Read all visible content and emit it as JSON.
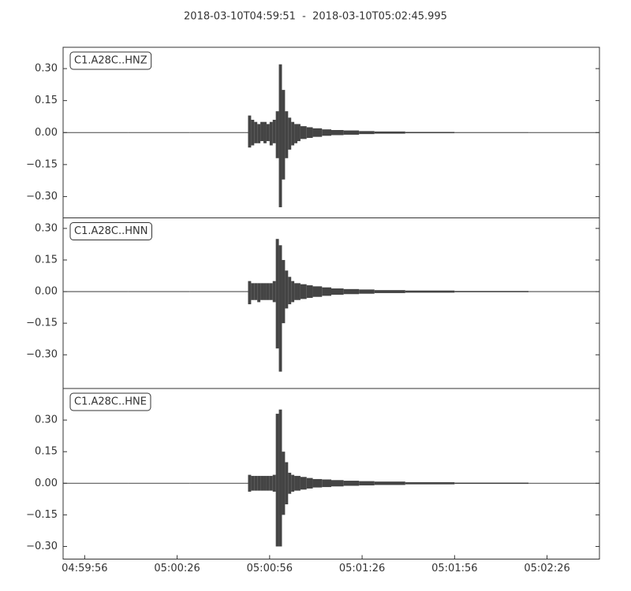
{
  "title": "2018-03-10T04:59:51  -  2018-03-10T05:02:45.995",
  "chart_data": [
    {
      "type": "envelope",
      "label": "C1.A28C..HNZ",
      "x": [
        "04:59:49",
        "05:00:10",
        "05:00:30",
        "05:00:48",
        "05:00:49",
        "05:00:50",
        "05:00:51",
        "05:00:52",
        "05:00:53",
        "05:00:54",
        "05:00:55",
        "05:00:56",
        "05:00:57",
        "05:00:58",
        "05:00:59",
        "05:01:00",
        "05:01:01",
        "05:01:02",
        "05:01:03",
        "05:01:04",
        "05:01:05",
        "05:01:06",
        "05:01:08",
        "05:01:10",
        "05:01:13",
        "05:01:16",
        "05:01:20",
        "05:01:25",
        "05:01:30",
        "05:01:40",
        "05:01:56",
        "05:02:20"
      ],
      "series": [
        {
          "color": "#444444",
          "values": [
            0.001,
            0.001,
            0.001,
            0.001,
            0.08,
            0.06,
            0.05,
            0.04,
            0.05,
            0.05,
            0.04,
            0.05,
            0.06,
            0.1,
            0.32,
            0.2,
            0.1,
            0.07,
            0.05,
            0.04,
            0.04,
            0.03,
            0.025,
            0.02,
            0.015,
            0.012,
            0.01,
            0.007,
            0.005,
            0.003,
            0.002,
            0.001
          ]
        },
        {
          "color": "#444444",
          "values": [
            -0.001,
            -0.001,
            -0.001,
            -0.001,
            -0.07,
            -0.06,
            -0.05,
            -0.05,
            -0.04,
            -0.05,
            -0.04,
            -0.06,
            -0.05,
            -0.12,
            -0.35,
            -0.22,
            -0.12,
            -0.08,
            -0.06,
            -0.05,
            -0.04,
            -0.03,
            -0.025,
            -0.02,
            -0.015,
            -0.012,
            -0.01,
            -0.007,
            -0.005,
            -0.003,
            -0.002,
            -0.001
          ]
        }
      ],
      "xlim": [
        "04:59:49",
        "05:02:43"
      ],
      "ylim": [
        -0.4,
        0.4
      ],
      "yticks": [
        {
          "value": 0.3,
          "label": "0.30"
        },
        {
          "value": 0.15,
          "label": "0.15"
        },
        {
          "value": 0,
          "label": "0.00"
        },
        {
          "value": -0.15,
          "label": "−0.15"
        },
        {
          "value": -0.3,
          "label": "−0.30"
        }
      ]
    },
    {
      "type": "envelope",
      "label": "C1.A28C..HNN",
      "x": [
        "04:59:49",
        "05:00:10",
        "05:00:30",
        "05:00:48",
        "05:00:49",
        "05:00:50",
        "05:00:51",
        "05:00:52",
        "05:00:53",
        "05:00:54",
        "05:00:55",
        "05:00:56",
        "05:00:57",
        "05:00:58",
        "05:00:59",
        "05:01:00",
        "05:01:01",
        "05:01:02",
        "05:01:03",
        "05:01:04",
        "05:01:05",
        "05:01:06",
        "05:01:08",
        "05:01:10",
        "05:01:13",
        "05:01:16",
        "05:01:20",
        "05:01:25",
        "05:01:30",
        "05:01:40",
        "05:01:56",
        "05:02:20"
      ],
      "series": [
        {
          "color": "#444444",
          "values": [
            0.002,
            0.002,
            0.002,
            0.002,
            0.05,
            0.04,
            0.04,
            0.04,
            0.04,
            0.04,
            0.04,
            0.04,
            0.05,
            0.25,
            0.22,
            0.15,
            0.1,
            0.07,
            0.05,
            0.04,
            0.04,
            0.035,
            0.03,
            0.025,
            0.02,
            0.015,
            0.012,
            0.01,
            0.007,
            0.005,
            0.003,
            0.002
          ]
        },
        {
          "color": "#444444",
          "values": [
            -0.002,
            -0.002,
            -0.002,
            -0.002,
            -0.06,
            -0.04,
            -0.04,
            -0.05,
            -0.04,
            -0.04,
            -0.04,
            -0.04,
            -0.05,
            -0.27,
            -0.38,
            -0.15,
            -0.08,
            -0.06,
            -0.05,
            -0.04,
            -0.04,
            -0.035,
            -0.03,
            -0.025,
            -0.02,
            -0.015,
            -0.012,
            -0.01,
            -0.007,
            -0.005,
            -0.003,
            -0.002
          ]
        }
      ],
      "xlim": [
        "04:59:49",
        "05:02:43"
      ],
      "ylim": [
        -0.46,
        0.35
      ],
      "yticks": [
        {
          "value": 0.3,
          "label": "0.30"
        },
        {
          "value": 0.15,
          "label": "0.15"
        },
        {
          "value": 0,
          "label": "0.00"
        },
        {
          "value": -0.15,
          "label": "−0.15"
        },
        {
          "value": -0.3,
          "label": "−0.30"
        }
      ]
    },
    {
      "type": "envelope",
      "label": "C1.A28C..HNE",
      "x": [
        "04:59:49",
        "05:00:10",
        "05:00:30",
        "05:00:48",
        "05:00:49",
        "05:00:50",
        "05:00:51",
        "05:00:52",
        "05:00:53",
        "05:00:54",
        "05:00:55",
        "05:00:56",
        "05:00:57",
        "05:00:58",
        "05:00:59",
        "05:01:00",
        "05:01:01",
        "05:01:02",
        "05:01:03",
        "05:01:04",
        "05:01:05",
        "05:01:06",
        "05:01:08",
        "05:01:10",
        "05:01:13",
        "05:01:16",
        "05:01:20",
        "05:01:25",
        "05:01:30",
        "05:01:40",
        "05:01:56",
        "05:02:20"
      ],
      "series": [
        {
          "color": "#444444",
          "values": [
            0.001,
            0.001,
            0.001,
            0.001,
            0.04,
            0.035,
            0.035,
            0.035,
            0.035,
            0.035,
            0.035,
            0.035,
            0.04,
            0.33,
            0.35,
            0.15,
            0.1,
            0.05,
            0.04,
            0.035,
            0.035,
            0.03,
            0.025,
            0.02,
            0.018,
            0.015,
            0.012,
            0.01,
            0.008,
            0.005,
            0.003,
            0.001
          ]
        },
        {
          "color": "#444444",
          "values": [
            -0.001,
            -0.001,
            -0.001,
            -0.001,
            -0.04,
            -0.035,
            -0.035,
            -0.035,
            -0.035,
            -0.035,
            -0.035,
            -0.035,
            -0.04,
            -0.3,
            -0.3,
            -0.15,
            -0.1,
            -0.05,
            -0.04,
            -0.035,
            -0.035,
            -0.03,
            -0.025,
            -0.02,
            -0.018,
            -0.015,
            -0.012,
            -0.01,
            -0.008,
            -0.005,
            -0.003,
            -0.001
          ]
        }
      ],
      "xlim": [
        "04:59:49",
        "05:02:43"
      ],
      "ylim": [
        -0.36,
        0.45
      ],
      "yticks": [
        {
          "value": 0.3,
          "label": "0.30"
        },
        {
          "value": 0.15,
          "label": "0.15"
        },
        {
          "value": 0,
          "label": "0.00"
        },
        {
          "value": -0.15,
          "label": "−0.15"
        },
        {
          "value": -0.3,
          "label": "−0.30"
        }
      ],
      "xticks": [
        "04:59:56",
        "05:00:26",
        "05:00:56",
        "05:01:26",
        "05:01:56",
        "05:02:26"
      ]
    }
  ]
}
